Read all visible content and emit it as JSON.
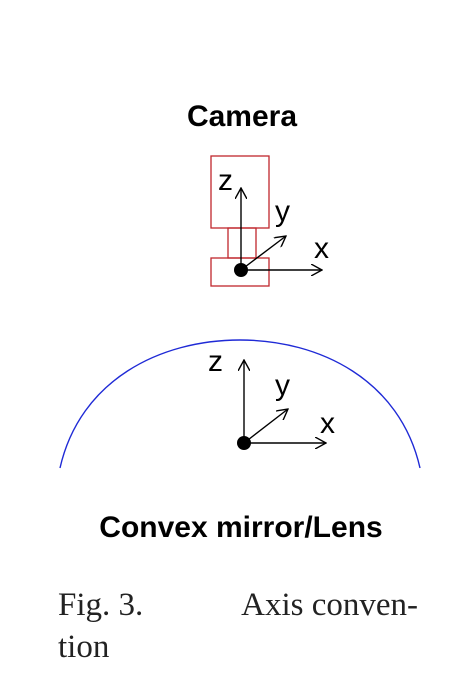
{
  "diagram": {
    "camera_label": "Camera",
    "mirror_label": "Convex mirror/Lens",
    "axis_labels": {
      "z": "z",
      "y": "y",
      "x": "x"
    },
    "colors": {
      "camera_box": "#c0272d",
      "mirror_arc": "#1f2ad6",
      "axes": "#000000"
    }
  },
  "caption": {
    "fig_number": "Fig. 3.",
    "text_line1": "Axis conven-",
    "text_line2": "tion"
  }
}
